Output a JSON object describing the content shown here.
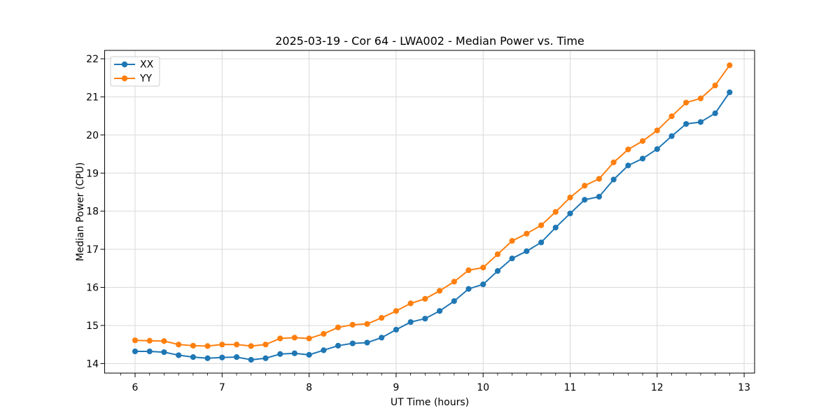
{
  "chart_data": {
    "type": "line",
    "title": "2025-03-19 - Cor 64 - LWA002 - Median Power vs. Time",
    "xlabel": "UT Time (hours)",
    "ylabel": "Median Power (CPU)",
    "xlim": [
      5.65,
      13.12
    ],
    "ylim": [
      13.75,
      22.22
    ],
    "xticks": [
      6,
      7,
      8,
      9,
      10,
      11,
      12,
      13
    ],
    "yticks": [
      14,
      15,
      16,
      17,
      18,
      19,
      20,
      21,
      22
    ],
    "x_minor_tick_step": 0.16667,
    "grid": true,
    "grid_color": "#d9d9d9",
    "legend": {
      "position": "upper-left",
      "entries": [
        "XX",
        "YY"
      ]
    },
    "x": [
      6.0,
      6.167,
      6.333,
      6.5,
      6.667,
      6.833,
      7.0,
      7.167,
      7.333,
      7.5,
      7.667,
      7.833,
      8.0,
      8.167,
      8.333,
      8.5,
      8.667,
      8.833,
      9.0,
      9.167,
      9.333,
      9.5,
      9.667,
      9.833,
      10.0,
      10.167,
      10.333,
      10.5,
      10.667,
      10.833,
      11.0,
      11.167,
      11.333,
      11.5,
      11.667,
      11.833,
      12.0,
      12.167,
      12.333,
      12.5,
      12.667,
      12.833
    ],
    "series": [
      {
        "name": "XX",
        "color": "#1f77b4",
        "values": [
          14.32,
          14.32,
          14.3,
          14.22,
          14.17,
          14.14,
          14.16,
          14.17,
          14.1,
          14.14,
          14.25,
          14.27,
          14.23,
          14.35,
          14.47,
          14.53,
          14.55,
          14.68,
          14.89,
          15.09,
          15.18,
          15.38,
          15.64,
          15.96,
          16.08,
          16.43,
          16.76,
          16.95,
          17.18,
          17.57,
          17.94,
          18.3,
          18.38,
          18.83,
          19.2,
          19.38,
          19.63,
          19.97,
          20.29,
          20.34,
          20.57,
          21.12
        ]
      },
      {
        "name": "YY",
        "color": "#ff7f0e",
        "values": [
          14.61,
          14.6,
          14.59,
          14.5,
          14.47,
          14.46,
          14.5,
          14.5,
          14.46,
          14.5,
          14.66,
          14.68,
          14.66,
          14.78,
          14.95,
          15.02,
          15.04,
          15.2,
          15.38,
          15.58,
          15.7,
          15.91,
          16.15,
          16.45,
          16.52,
          16.87,
          17.22,
          17.41,
          17.63,
          17.98,
          18.36,
          18.67,
          18.85,
          19.28,
          19.62,
          19.84,
          20.12,
          20.49,
          20.85,
          20.96,
          21.3,
          21.83
        ]
      }
    ]
  }
}
